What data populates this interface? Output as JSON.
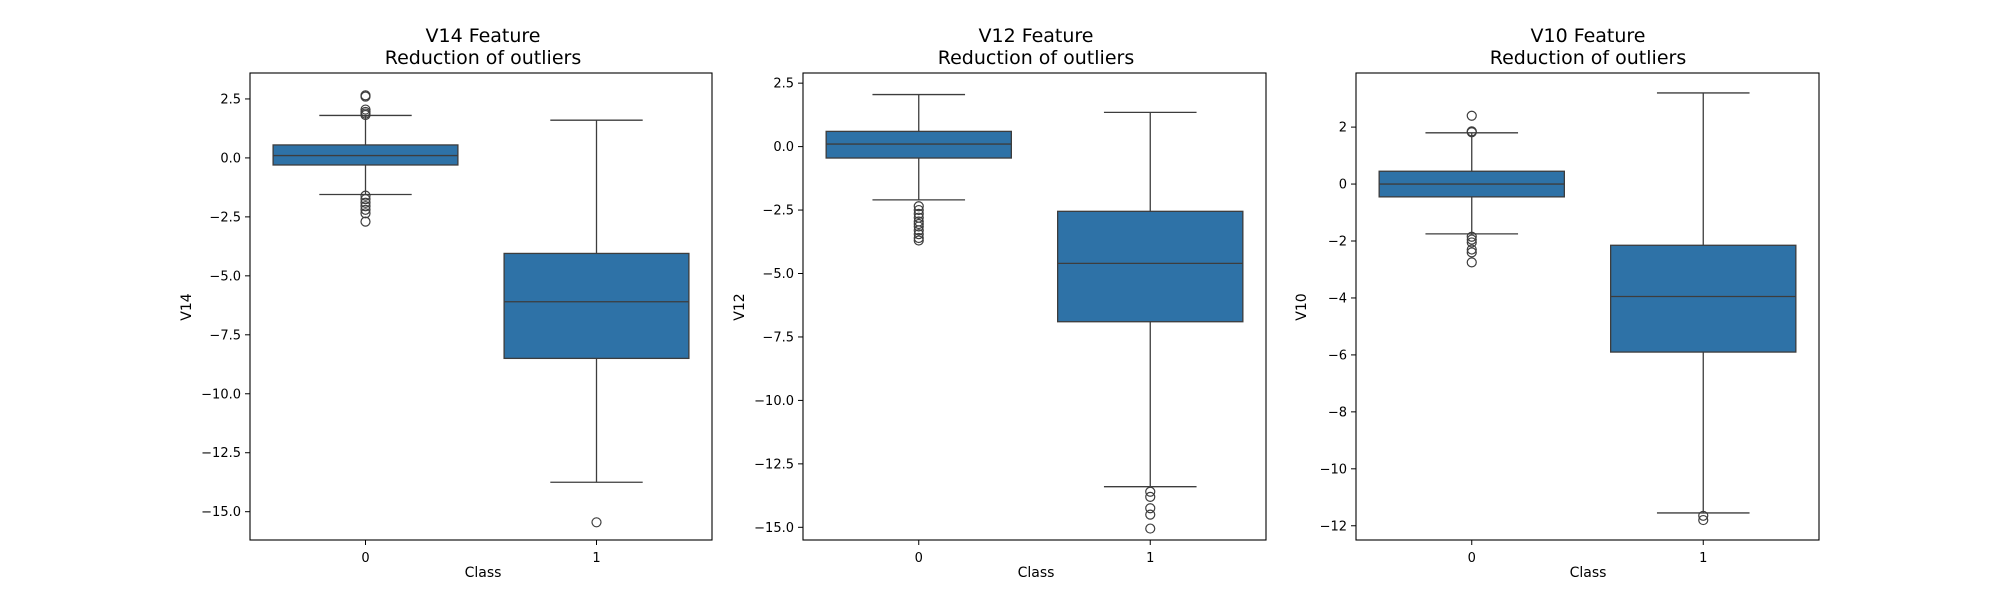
{
  "figure": {
    "background": "#ffffff",
    "box_color": "#2e72a7",
    "line_color": "#3d3d3d"
  },
  "chart_data": [
    {
      "type": "boxplot",
      "title_line1": "V14 Feature",
      "title_line2": "Reduction of outliers",
      "xlabel": "Class",
      "ylabel": "V14",
      "ylim": [
        -16.2,
        3.6
      ],
      "yticks": [
        2.5,
        0.0,
        -2.5,
        -5.0,
        -7.5,
        -10.0,
        -12.5,
        -15.0
      ],
      "ytick_labels": [
        "2.5",
        "0.0",
        "−2.5",
        "−5.0",
        "−7.5",
        "−10.0",
        "−12.5",
        "−15.0"
      ],
      "categories": [
        "0",
        "1"
      ],
      "boxes": [
        {
          "category": "0",
          "whisker_low": -1.55,
          "q1": -0.3,
          "median": 0.1,
          "q3": 0.55,
          "whisker_high": 1.8,
          "outliers": [
            2.65,
            2.6,
            2.05,
            1.95,
            1.88,
            1.82,
            -1.6,
            -1.75,
            -1.9,
            -2.05,
            -2.2,
            -2.35,
            -2.7
          ]
        },
        {
          "category": "1",
          "whisker_low": -13.75,
          "q1": -8.5,
          "median": -6.1,
          "q3": -4.05,
          "whisker_high": 1.6,
          "outliers": [
            -15.45
          ]
        }
      ]
    },
    {
      "type": "boxplot",
      "title_line1": "V12 Feature",
      "title_line2": "Reduction of outliers",
      "xlabel": "Class",
      "ylabel": "V12",
      "ylim": [
        -15.5,
        2.9
      ],
      "yticks": [
        2.5,
        0.0,
        -2.5,
        -5.0,
        -7.5,
        -10.0,
        -12.5,
        -15.0
      ],
      "ytick_labels": [
        "2.5",
        "0.0",
        "−2.5",
        "−5.0",
        "−7.5",
        "−10.0",
        "−12.5",
        "−15.0"
      ],
      "categories": [
        "0",
        "1"
      ],
      "boxes": [
        {
          "category": "0",
          "whisker_low": -2.1,
          "q1": -0.45,
          "median": 0.1,
          "q3": 0.6,
          "whisker_high": 2.05,
          "outliers": [
            -2.35,
            -2.5,
            -2.65,
            -2.8,
            -2.95,
            -3.05,
            -3.15,
            -3.3,
            -3.45,
            -3.6,
            -3.7
          ]
        },
        {
          "category": "1",
          "whisker_low": -13.4,
          "q1": -6.9,
          "median": -4.6,
          "q3": -2.55,
          "whisker_high": 1.35,
          "outliers": [
            -13.6,
            -13.8,
            -14.25,
            -14.5,
            -15.05
          ]
        }
      ]
    },
    {
      "type": "boxplot",
      "title_line1": "V10 Feature",
      "title_line2": "Reduction of outliers",
      "xlabel": "Class",
      "ylabel": "V10",
      "ylim": [
        -12.5,
        3.9
      ],
      "yticks": [
        2,
        0,
        -2,
        -4,
        -6,
        -8,
        -10,
        -12
      ],
      "ytick_labels": [
        "2",
        "0",
        "−2",
        "−4",
        "−6",
        "−8",
        "−10",
        "−12"
      ],
      "categories": [
        "0",
        "1"
      ],
      "boxes": [
        {
          "category": "0",
          "whisker_low": -1.75,
          "q1": -0.45,
          "median": 0.0,
          "q3": 0.45,
          "whisker_high": 1.8,
          "outliers": [
            2.4,
            1.85,
            1.82,
            -1.85,
            -1.95,
            -2.05,
            -2.3,
            -2.4,
            -2.75
          ]
        },
        {
          "category": "1",
          "whisker_low": -11.55,
          "q1": -5.9,
          "median": -3.95,
          "q3": -2.15,
          "whisker_high": 3.2,
          "outliers": [
            -11.65,
            -11.8
          ]
        }
      ]
    }
  ]
}
